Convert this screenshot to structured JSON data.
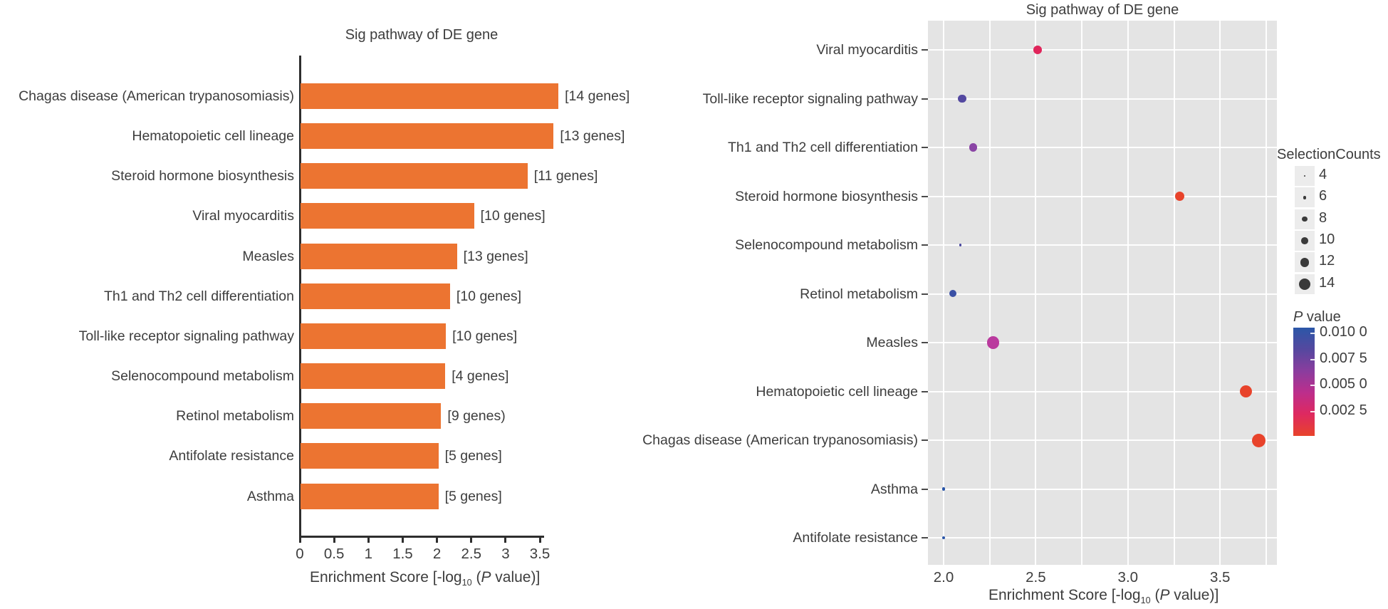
{
  "chart_data": [
    {
      "type": "bar",
      "title": "Sig pathway of DE gene",
      "xlabel": {
        "pre": "Enrichment Score [-log",
        "sub": "10",
        "mid": " (",
        "it": "P",
        "post": " value)]"
      },
      "xtick_labels": [
        "0",
        "0.5",
        "1",
        "1.5",
        "2",
        "2.5",
        "3",
        "3.5"
      ],
      "xtick_values": [
        0,
        0.5,
        1,
        1.5,
        2,
        2.5,
        3,
        3.5
      ],
      "xlim": [
        0,
        3.9
      ],
      "bar_color": "#EC7431",
      "axis_color": "#2e2e2e",
      "grid": "off",
      "categories": [
        "Chagas disease (American trypanosomiasis)",
        "Hematopoietic cell lineage",
        "Steroid hormone biosynthesis",
        "Viral myocarditis",
        "Measles",
        "Th1 and Th2 cell differentiation",
        "Toll-like receptor signaling pathway",
        "Selenocompound metabolism",
        "Retinol metabolism",
        "Antifolate resistance",
        "Asthma"
      ],
      "values": [
        3.76,
        3.69,
        3.31,
        2.53,
        2.28,
        2.18,
        2.12,
        2.11,
        2.05,
        2.01,
        2.01
      ],
      "bar_annotations": [
        "[14 genes]",
        "[13 genes]",
        "[11 genes]",
        "[10 genes]",
        "[13 genes]",
        "[10 genes]",
        "[10 genes]",
        "[4 genes]",
        "[9 genes)",
        "[5 genes]",
        "[5 genes]"
      ]
    },
    {
      "type": "scatter",
      "title": "Sig pathway of DE gene",
      "xlabel": {
        "pre": "Enrichment Score [-log",
        "sub": "10",
        "mid": " (",
        "it": "P",
        "post": " value)]"
      },
      "xtick_labels": [
        "2.0",
        "2.5",
        "3.0",
        "3.5"
      ],
      "xtick_values": [
        2.0,
        2.5,
        3.0,
        3.5
      ],
      "xlim": [
        1.915,
        3.83
      ],
      "grid": "on",
      "grid_values": [
        2.0,
        2.25,
        2.5,
        2.75,
        3.0,
        3.25,
        3.5,
        3.75
      ],
      "panel_bg": "#e4e4e4",
      "categories": [
        "Viral myocarditis",
        "Toll-like receptor signaling pathway",
        "Th1 and Th2 cell differentiation",
        "Steroid hormone biosynthesis",
        "Selenocompound metabolism",
        "Retinol metabolism",
        "Measles",
        "Hematopoietic cell lineage",
        "Chagas disease (American trypanosomiasis)",
        "Asthma",
        "Antifolate resistance"
      ],
      "points": [
        {
          "label": "Viral myocarditis",
          "x": 2.51,
          "count": 10,
          "color": "#E0255B"
        },
        {
          "label": "Toll-like receptor signaling pathway",
          "x": 2.1,
          "count": 10,
          "color": "#5348A0"
        },
        {
          "label": "Th1 and Th2 cell differentiation",
          "x": 2.16,
          "count": 10,
          "color": "#8A45A5"
        },
        {
          "label": "Steroid hormone biosynthesis",
          "x": 3.28,
          "count": 11,
          "color": "#E8432B"
        },
        {
          "label": "Selenocompound metabolism",
          "x": 2.09,
          "count": 4,
          "color": "#4A48A0"
        },
        {
          "label": "Retinol metabolism",
          "x": 2.05,
          "count": 9,
          "color": "#3A50A5"
        },
        {
          "label": "Measles",
          "x": 2.27,
          "count": 13,
          "color": "#BA3A9E"
        },
        {
          "label": "Hematopoietic cell lineage",
          "x": 3.64,
          "count": 13,
          "color": "#E8432B"
        },
        {
          "label": "Chagas disease (American trypanosomiasis)",
          "x": 3.71,
          "count": 14,
          "color": "#E8432B"
        },
        {
          "label": "Asthma",
          "x": 2.0,
          "count": 5,
          "color": "#2A56A8"
        },
        {
          "label": "Antifolate resistance",
          "x": 2.0,
          "count": 5,
          "color": "#2A56A8"
        }
      ],
      "legend": {
        "size_title": "SelectionCounts",
        "size_labels": [
          "4",
          "6",
          "8",
          "10",
          "12",
          "14"
        ],
        "size_values": [
          4,
          6,
          8,
          10,
          12,
          14
        ],
        "dot_color": "#3a3a3a",
        "key_bg": "#ececec",
        "pvalue_title": {
          "it": "P",
          "rest": " value"
        },
        "pvalue_tick_labels": [
          "0.010 0",
          "0.007 5",
          "0.005 0",
          "0.002 5"
        ],
        "gradient": [
          "#2B57A8",
          "#55489F",
          "#8A3D9E",
          "#BC2E8C",
          "#DE2960",
          "#E8432B"
        ],
        "legend_position": "right"
      }
    }
  ]
}
